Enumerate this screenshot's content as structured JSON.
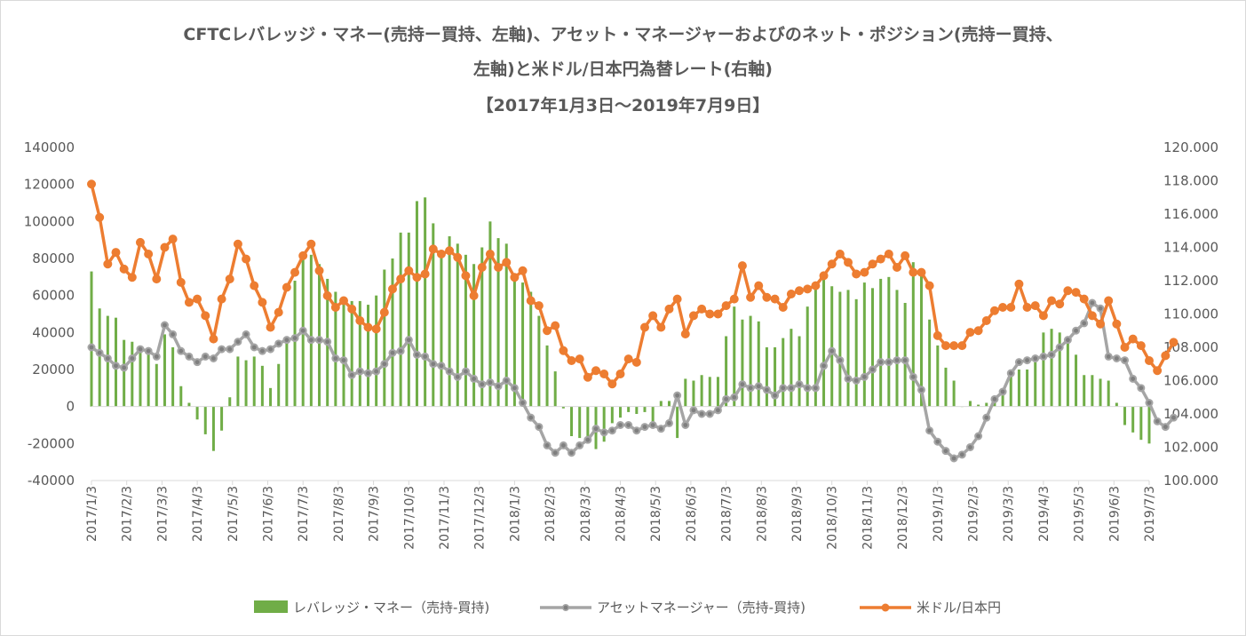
{
  "title": {
    "line1": "CFTCレバレッジ・マネー(売持ー買持、左軸)、アセット・マネージャーおよびのネット・ポジション(売持ー買持、",
    "line2": "左軸)と米ドル/日本円為替レート(右軸)",
    "line3": "【2017年1月3日～2019年7月9日】"
  },
  "chart_data": {
    "type": "bar+line",
    "left_axis": {
      "min": -40000,
      "max": 140000,
      "step": 20000,
      "ticks": [
        "-40000",
        "-20000",
        "0",
        "20000",
        "40000",
        "60000",
        "80000",
        "100000",
        "120000",
        "140000"
      ]
    },
    "right_axis": {
      "min": 100,
      "max": 120,
      "step": 2,
      "ticks": [
        "100.000",
        "102.000",
        "104.000",
        "106.000",
        "108.000",
        "110.000",
        "112.000",
        "114.000",
        "116.000",
        "118.000",
        "120.000"
      ]
    },
    "x_tick_labels": [
      "2017/1/3",
      "2017/2/3",
      "2017/3/3",
      "2017/4/3",
      "2017/5/3",
      "2017/6/3",
      "2017/7/3",
      "2017/8/3",
      "2017/9/3",
      "2017/10/3",
      "2017/11/3",
      "2017/12/3",
      "2018/1/3",
      "2018/2/3",
      "2018/3/3",
      "2018/4/3",
      "2018/5/3",
      "2018/6/3",
      "2018/7/3",
      "2018/8/3",
      "2018/9/3",
      "2018/10/3",
      "2018/11/3",
      "2018/12/3",
      "2019/1/3",
      "2019/2/3",
      "2019/3/3",
      "2019/4/3",
      "2019/5/3",
      "2019/6/3",
      "2019/7/3"
    ],
    "grid": false,
    "legend_position": "bottom",
    "series": [
      {
        "name": "レバレッジ・マネー（売持-買持)",
        "type": "bar",
        "axis": "left",
        "color": "#70ad47",
        "values": [
          73000,
          53000,
          49000,
          48000,
          36000,
          35000,
          32000,
          30000,
          23000,
          39000,
          32000,
          11000,
          2000,
          -7000,
          -15000,
          -24000,
          -13000,
          5000,
          27000,
          25000,
          27000,
          22000,
          10000,
          23000,
          36000,
          68000,
          83000,
          82000,
          77000,
          69000,
          62000,
          58000,
          57000,
          57000,
          55000,
          60000,
          74000,
          80000,
          94000,
          94000,
          111000,
          113000,
          99000,
          82000,
          92000,
          88000,
          82000,
          77000,
          86000,
          100000,
          91000,
          88000,
          70000,
          67000,
          62000,
          49000,
          33000,
          19000,
          -1000,
          -16000,
          -17000,
          -20000,
          -23000,
          -19000,
          -9000,
          -6000,
          -3000,
          -4000,
          -3000,
          -10000,
          3000,
          3000,
          -17000,
          15000,
          14000,
          17000,
          16000,
          16000,
          38000,
          54000,
          47000,
          49000,
          46000,
          32000,
          32000,
          37000,
          42000,
          38000,
          54000,
          66000,
          71000,
          65000,
          62000,
          63000,
          58000,
          67000,
          64000,
          69000,
          70000,
          63000,
          56000,
          78000,
          74000,
          47000,
          33000,
          21000,
          14000,
          0,
          3000,
          1000,
          2000,
          4000,
          8000,
          18000,
          20000,
          20000,
          24000,
          40000,
          42000,
          40000,
          38000,
          28000,
          17000,
          17000,
          15000,
          14000,
          2000,
          -10000,
          -14000,
          -18000,
          -20000
        ]
      },
      {
        "name": "アセットマネージャー（売持-買持)",
        "type": "line",
        "axis": "left",
        "color": "#a5a5a5",
        "values": [
          32000,
          29000,
          26000,
          22000,
          21000,
          26000,
          31000,
          30000,
          27000,
          44000,
          39000,
          30000,
          27000,
          24000,
          27000,
          26000,
          31000,
          31000,
          35000,
          39000,
          32000,
          30000,
          31000,
          34000,
          36000,
          37000,
          41000,
          36000,
          36000,
          35000,
          26000,
          25000,
          17000,
          19000,
          18000,
          19000,
          23000,
          29000,
          30000,
          36000,
          28000,
          27000,
          23000,
          22000,
          19000,
          16000,
          19000,
          15000,
          12000,
          13000,
          11000,
          14000,
          10000,
          2000,
          -6000,
          -11000,
          -21000,
          -25000,
          -21000,
          -25000,
          -21000,
          -18000,
          -12000,
          -14000,
          -13000,
          -10000,
          -10000,
          -13000,
          -11000,
          -10000,
          -12000,
          -9000,
          6000,
          -10000,
          -2000,
          -4000,
          -4000,
          -2000,
          4000,
          5000,
          12000,
          10000,
          11000,
          9000,
          6000,
          10000,
          10000,
          12000,
          10000,
          10000,
          22000,
          30000,
          25000,
          15000,
          14000,
          16000,
          20000,
          24000,
          24000,
          25000,
          25000,
          16000,
          9000,
          -13000,
          -19000,
          -24000,
          -28000,
          -26000,
          -22000,
          -16000,
          -6000,
          4000,
          8000,
          18000,
          24000,
          25000,
          26000,
          27000,
          28000,
          32000,
          36000,
          41000,
          45000,
          56000,
          53000,
          27000,
          26000,
          25000,
          15000,
          10000,
          2000,
          -8000,
          -11000,
          -6000
        ]
      },
      {
        "name": "米ドル/日本円",
        "type": "line",
        "axis": "right",
        "color": "#ed7d31",
        "values": [
          117.8,
          115.8,
          113.0,
          113.7,
          112.7,
          112.2,
          114.3,
          113.6,
          112.1,
          114.0,
          114.5,
          111.9,
          110.7,
          110.9,
          109.9,
          108.5,
          110.9,
          112.1,
          114.2,
          113.3,
          111.7,
          110.7,
          109.2,
          110.1,
          111.6,
          112.5,
          113.5,
          114.2,
          112.6,
          111.1,
          110.4,
          110.8,
          110.3,
          109.6,
          109.2,
          109.1,
          110.1,
          111.5,
          112.1,
          112.6,
          112.2,
          112.4,
          113.9,
          113.6,
          113.8,
          113.4,
          112.3,
          111.1,
          112.8,
          113.6,
          112.8,
          113.1,
          112.2,
          112.6,
          110.8,
          110.5,
          109.0,
          109.3,
          107.8,
          107.2,
          107.3,
          106.2,
          106.6,
          106.4,
          105.8,
          106.4,
          107.3,
          107.1,
          109.2,
          109.9,
          109.2,
          110.3,
          110.9,
          108.8,
          109.9,
          110.3,
          110.0,
          110.0,
          110.5,
          110.9,
          112.9,
          111.0,
          111.7,
          111.0,
          110.9,
          110.4,
          111.2,
          111.4,
          111.5,
          111.7,
          112.3,
          113.0,
          113.6,
          113.1,
          112.4,
          112.5,
          113.0,
          113.3,
          113.6,
          112.8,
          113.5,
          112.5,
          112.5,
          111.7,
          108.7,
          108.1,
          108.1,
          108.1,
          108.9,
          109.0,
          109.6,
          110.2,
          110.4,
          110.4,
          111.8,
          110.4,
          110.5,
          109.9,
          110.8,
          110.6,
          111.4,
          111.3,
          110.9,
          109.9,
          109.4,
          110.8,
          109.4,
          108.0,
          108.5,
          108.1,
          107.2,
          106.6,
          107.5,
          108.3
        ]
      }
    ]
  }
}
